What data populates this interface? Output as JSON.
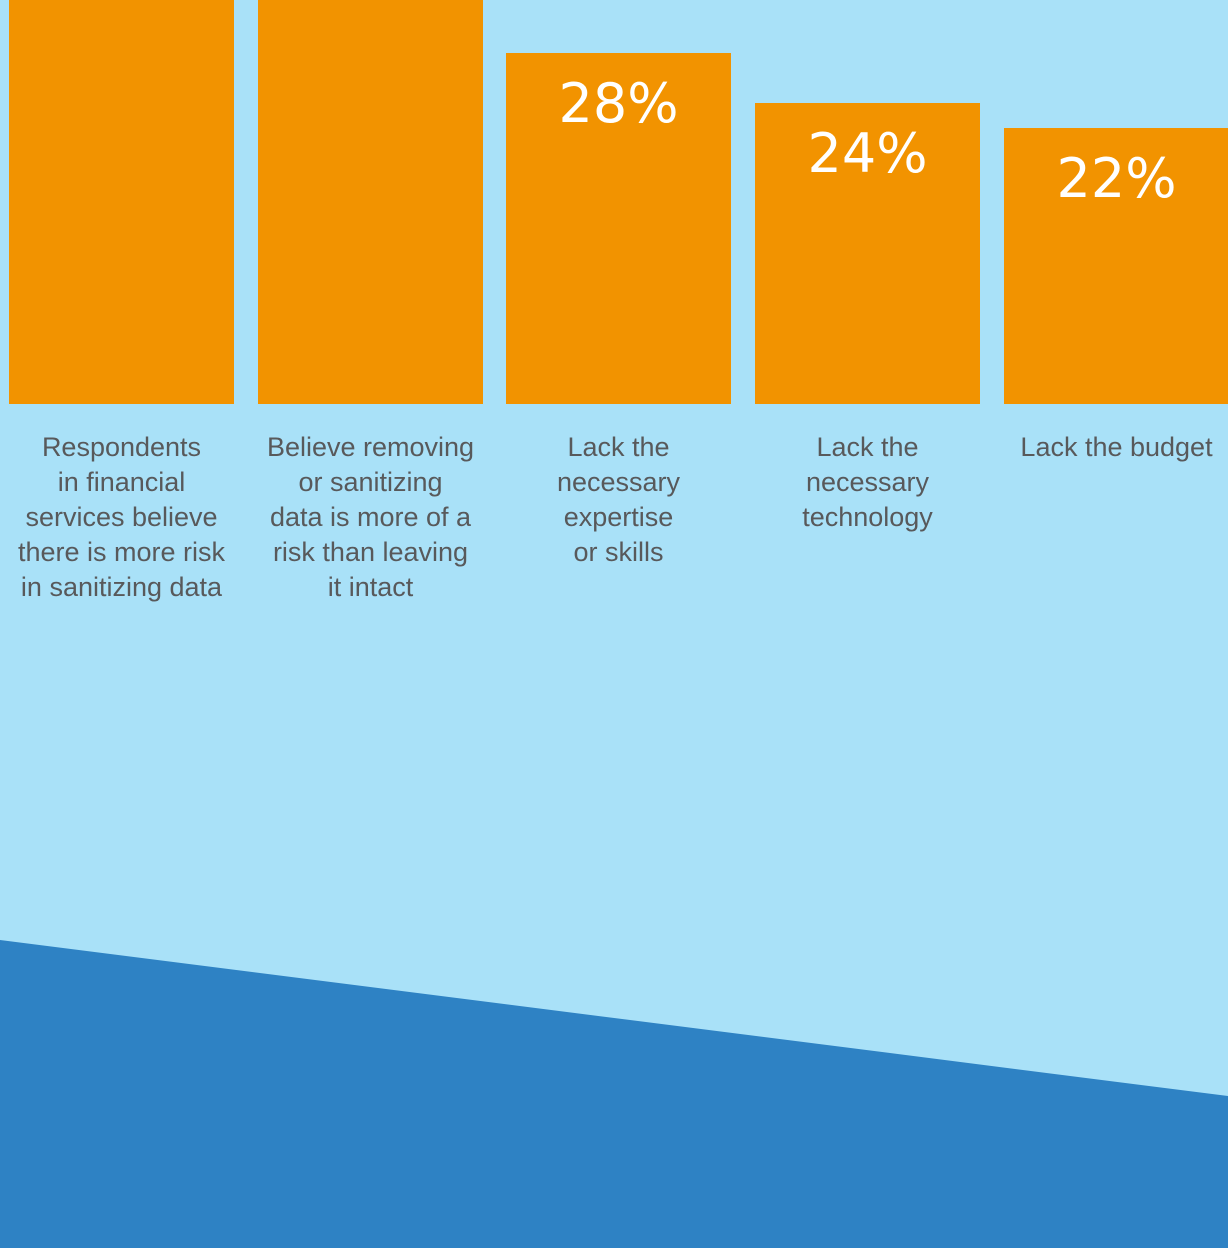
{
  "colors": {
    "background": "#a9e1f8",
    "bar": "#f29300",
    "value_text": "#ffffff",
    "label_text": "#58595b",
    "band": "#2e82c4"
  },
  "chart_data": {
    "type": "bar",
    "title": "",
    "xlabel": "",
    "ylabel": "",
    "grid": false,
    "ylim": [
      0,
      40
    ],
    "categories": [
      "Respondents in financial services believe there is more risk in sanitizing data",
      "Believe removing or sanitizing data is more of a risk than leaving it intact",
      "Lack the necessary expertise or skills",
      "Lack the necessary technology",
      "Lack the budget"
    ],
    "values": [
      null,
      null,
      28,
      24,
      22
    ],
    "value_labels": [
      "",
      "",
      "28%",
      "24%",
      "22%"
    ]
  }
}
